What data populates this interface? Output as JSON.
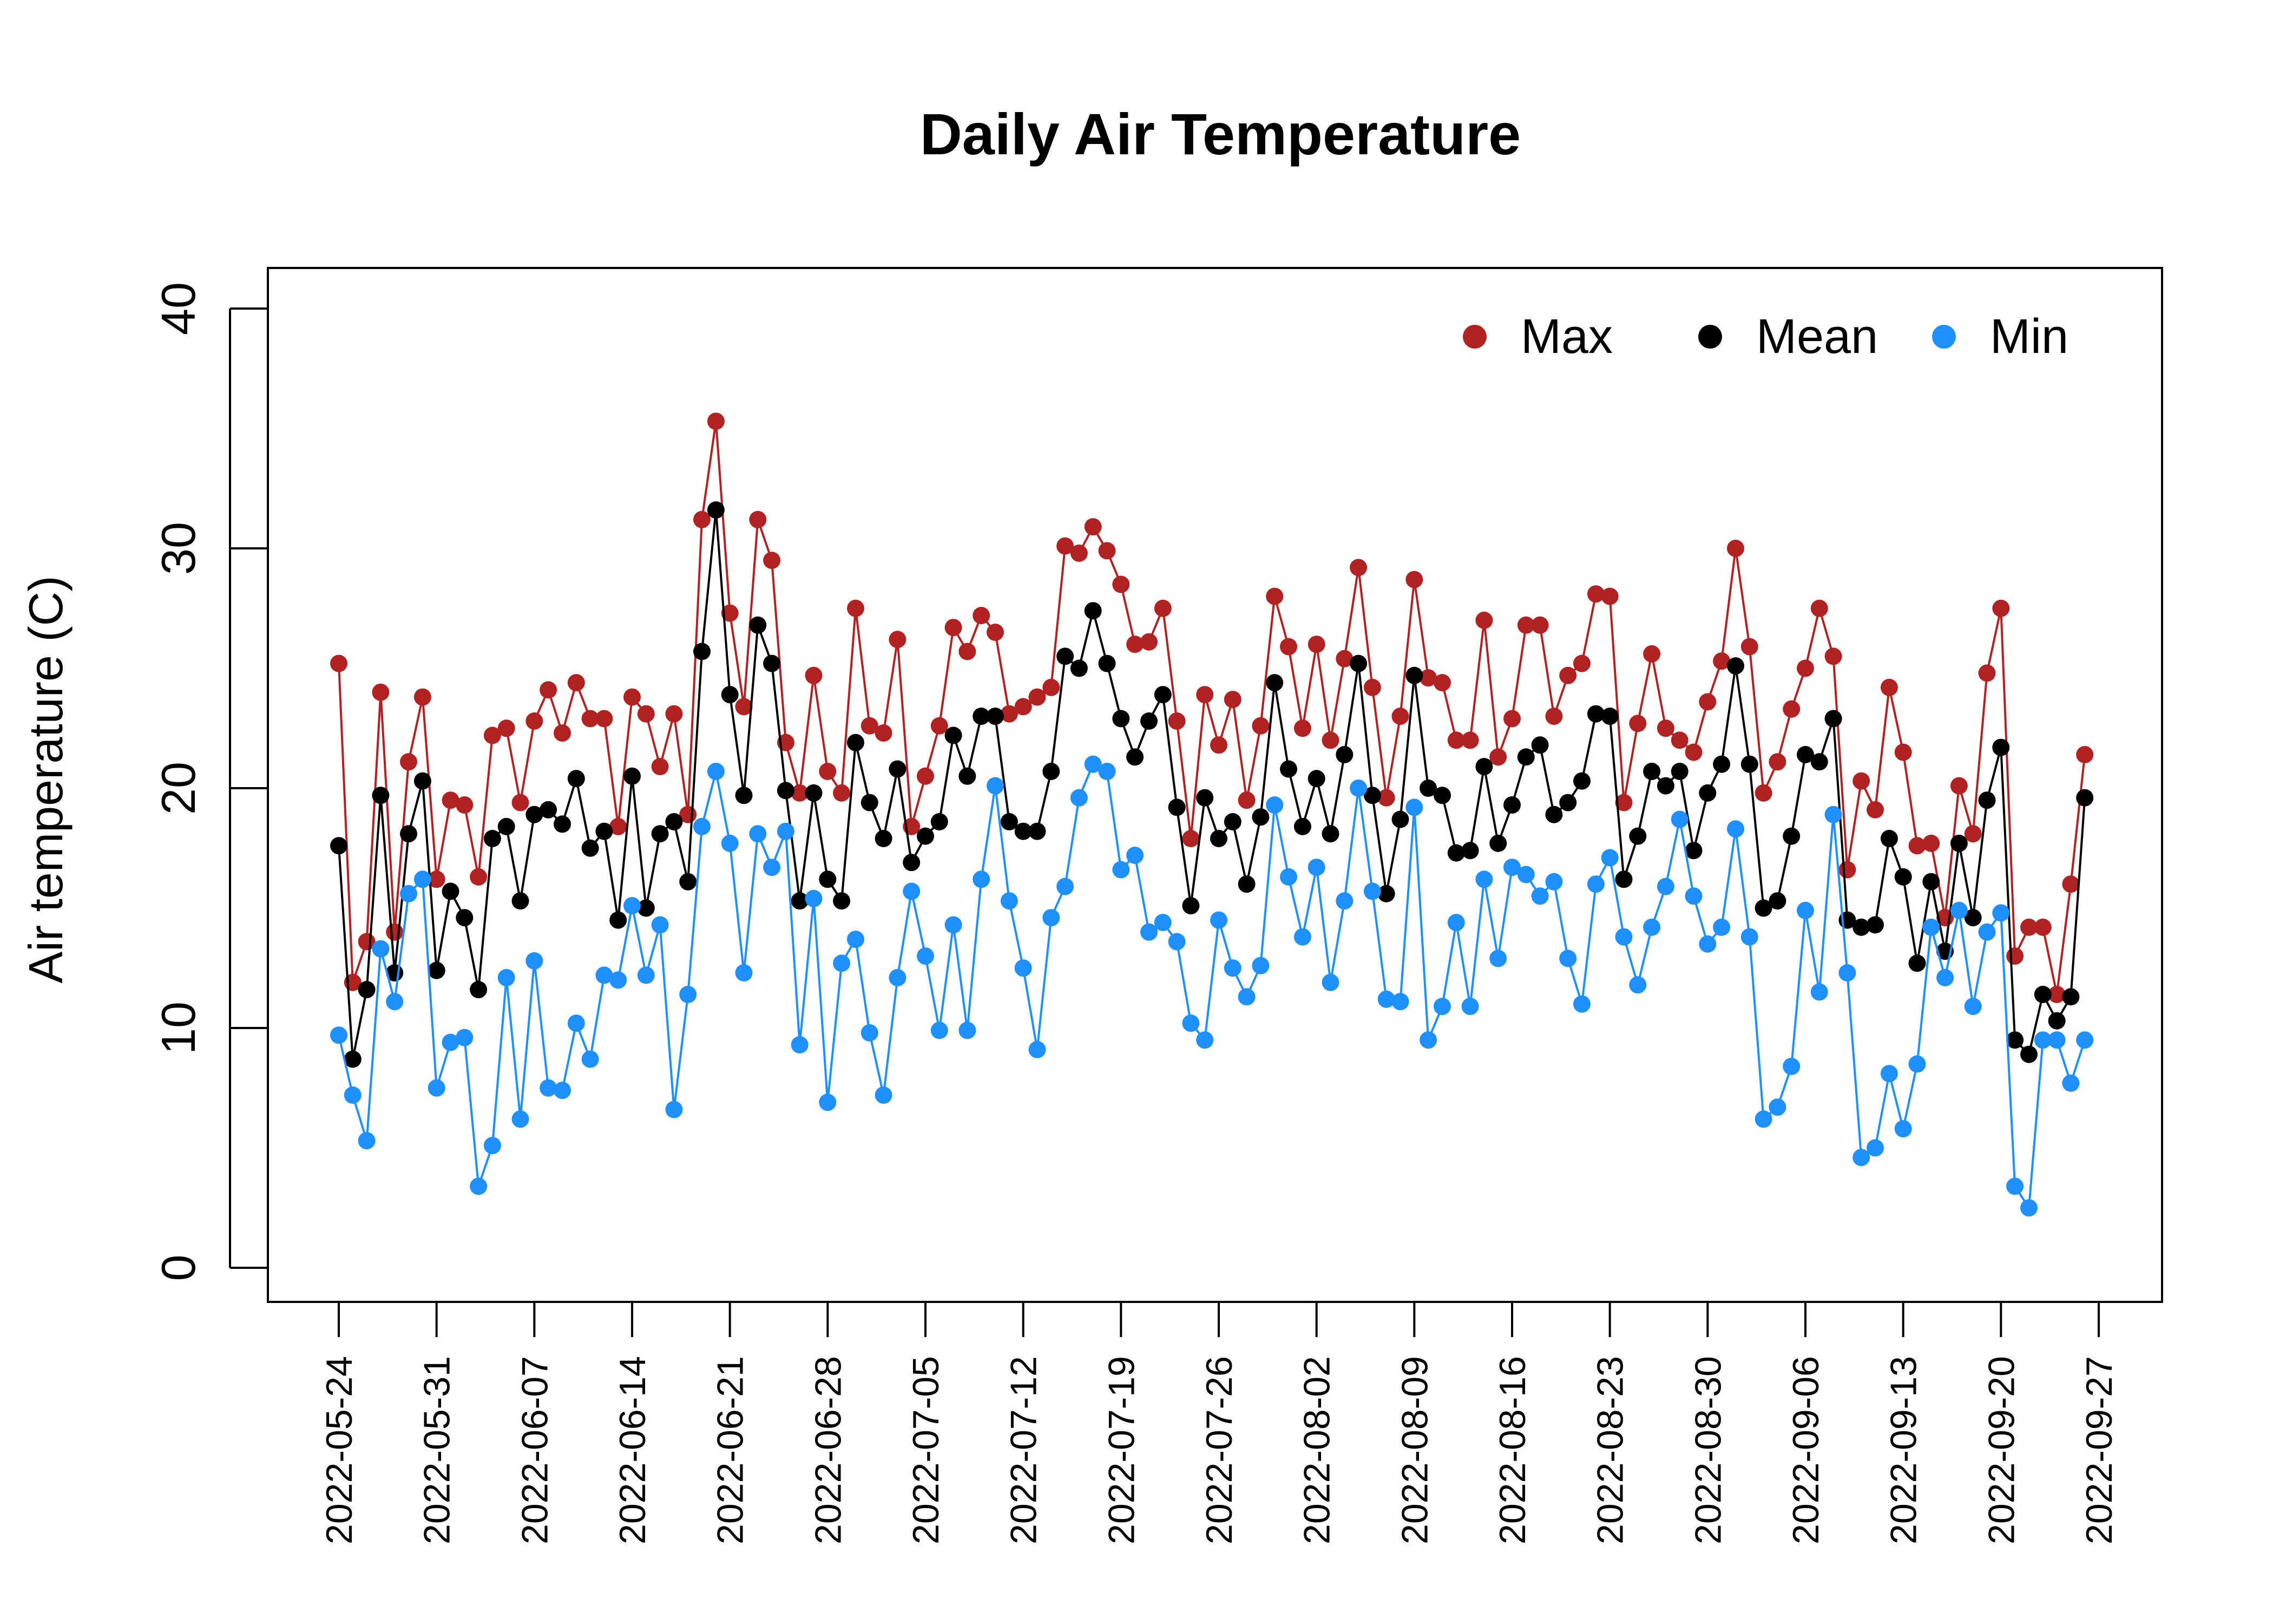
{
  "chart_data": {
    "type": "line",
    "title": "Daily Air Temperature",
    "xlabel": "",
    "ylabel": "Air temperature (C)",
    "ylim": [
      0,
      40
    ],
    "yticks": [
      0,
      10,
      20,
      30,
      40
    ],
    "xlim": [
      "2022-05-24",
      "2022-09-27"
    ],
    "xticks": [
      "2022-05-24",
      "2022-05-31",
      "2022-06-07",
      "2022-06-14",
      "2022-06-21",
      "2022-06-28",
      "2022-07-05",
      "2022-07-12",
      "2022-07-19",
      "2022-07-26",
      "2022-08-02",
      "2022-08-09",
      "2022-08-16",
      "2022-08-23",
      "2022-08-30",
      "2022-09-06",
      "2022-09-13",
      "2022-09-20",
      "2022-09-27"
    ],
    "x_start": "2022-05-24",
    "x_step_days": 1,
    "legend_position": "top-right",
    "grid": false,
    "series": [
      {
        "name": "Max",
        "color": "#B22222",
        "values": [
          25.2,
          11.9,
          13.6,
          24.0,
          14.0,
          21.1,
          23.8,
          16.2,
          19.5,
          19.3,
          16.3,
          22.2,
          22.5,
          19.4,
          22.8,
          24.1,
          22.3,
          24.4,
          22.9,
          22.9,
          18.4,
          23.8,
          23.1,
          20.9,
          23.1,
          18.9,
          31.2,
          35.3,
          27.3,
          23.4,
          31.2,
          29.5,
          21.9,
          19.8,
          24.7,
          20.7,
          19.8,
          27.5,
          22.6,
          22.3,
          26.2,
          18.4,
          20.5,
          22.6,
          26.7,
          25.7,
          27.2,
          26.5,
          23.1,
          23.4,
          23.8,
          24.2,
          30.1,
          29.8,
          30.9,
          29.9,
          28.5,
          26.0,
          26.1,
          27.5,
          22.8,
          17.9,
          23.9,
          21.8,
          23.7,
          19.5,
          22.6,
          28.0,
          25.9,
          22.5,
          26.0,
          22.0,
          25.4,
          29.2,
          24.2,
          19.6,
          23.0,
          28.7,
          24.6,
          24.4,
          22.0,
          22.0,
          27.0,
          21.3,
          22.9,
          26.8,
          26.8,
          23.0,
          24.7,
          25.2,
          28.1,
          28.0,
          19.4,
          22.7,
          25.6,
          22.5,
          22.0,
          21.5,
          23.6,
          25.3,
          30.0,
          25.9,
          19.8,
          21.1,
          23.3,
          25.0,
          27.5,
          25.5,
          16.6,
          20.3,
          19.1,
          24.2,
          21.5,
          17.6,
          17.7,
          14.6,
          20.1,
          18.1,
          24.8,
          27.5,
          13.0,
          14.2,
          14.2,
          11.4,
          16.0,
          21.4
        ]
      },
      {
        "name": "Mean",
        "color": "#000000",
        "values": [
          17.6,
          8.7,
          11.6,
          19.7,
          12.3,
          18.1,
          20.3,
          12.4,
          15.7,
          14.6,
          11.6,
          17.9,
          18.4,
          15.3,
          18.9,
          19.1,
          18.5,
          20.4,
          17.5,
          18.2,
          14.5,
          20.5,
          15.0,
          18.1,
          18.6,
          16.1,
          25.7,
          31.6,
          23.9,
          19.7,
          26.8,
          25.2,
          19.9,
          15.3,
          19.8,
          16.2,
          15.3,
          21.9,
          19.4,
          17.9,
          20.8,
          16.9,
          18.0,
          18.6,
          22.2,
          20.5,
          23.0,
          23.0,
          18.6,
          18.2,
          18.2,
          20.7,
          25.5,
          25.0,
          27.4,
          25.2,
          22.9,
          21.3,
          22.8,
          23.9,
          19.2,
          15.1,
          19.6,
          17.9,
          18.6,
          16.0,
          18.8,
          24.4,
          20.8,
          18.4,
          20.4,
          18.1,
          21.4,
          25.2,
          19.7,
          15.6,
          18.7,
          24.7,
          20.0,
          19.7,
          17.3,
          17.4,
          20.9,
          17.7,
          19.3,
          21.3,
          21.8,
          18.9,
          19.4,
          20.3,
          23.1,
          23.0,
          16.2,
          18.0,
          20.7,
          20.1,
          20.7,
          17.4,
          19.8,
          21.0,
          25.1,
          21.0,
          15.0,
          15.3,
          18.0,
          21.4,
          21.1,
          22.9,
          14.5,
          14.2,
          14.3,
          17.9,
          16.3,
          12.7,
          16.1,
          13.2,
          17.7,
          14.6,
          19.5,
          21.7,
          9.5,
          8.9,
          11.4,
          10.3,
          11.3,
          19.6
        ]
      },
      {
        "name": "Min",
        "color": "#1E90FF",
        "values": [
          9.7,
          7.2,
          5.3,
          13.3,
          11.1,
          15.6,
          16.2,
          7.5,
          9.4,
          9.6,
          3.4,
          5.1,
          12.1,
          6.2,
          12.8,
          7.5,
          7.4,
          10.2,
          8.7,
          12.2,
          12.0,
          15.1,
          12.2,
          14.3,
          6.6,
          11.4,
          18.4,
          20.7,
          17.7,
          12.3,
          18.1,
          16.7,
          18.2,
          9.3,
          15.4,
          6.9,
          12.7,
          13.7,
          9.8,
          7.2,
          12.1,
          15.7,
          13.0,
          9.9,
          14.3,
          9.9,
          16.2,
          20.1,
          15.3,
          12.5,
          9.1,
          14.6,
          15.9,
          19.6,
          21.0,
          20.7,
          16.6,
          17.2,
          14.0,
          14.4,
          13.6,
          10.2,
          9.5,
          14.5,
          12.5,
          11.3,
          12.6,
          19.3,
          16.3,
          13.8,
          16.7,
          11.9,
          15.3,
          20.0,
          15.7,
          11.2,
          11.1,
          19.2,
          9.5,
          10.9,
          14.4,
          10.9,
          16.2,
          12.9,
          16.7,
          16.4,
          15.5,
          16.1,
          12.9,
          11.0,
          16.0,
          17.1,
          13.8,
          11.8,
          14.2,
          15.9,
          18.7,
          15.5,
          13.5,
          14.2,
          18.3,
          13.8,
          6.2,
          6.7,
          8.4,
          14.9,
          11.5,
          18.9,
          12.3,
          4.6,
          5.0,
          8.1,
          5.8,
          8.5,
          14.2,
          12.1,
          14.9,
          10.9,
          14.0,
          14.8,
          3.4,
          2.5,
          9.5,
          9.5,
          7.7,
          9.5
        ]
      }
    ]
  }
}
